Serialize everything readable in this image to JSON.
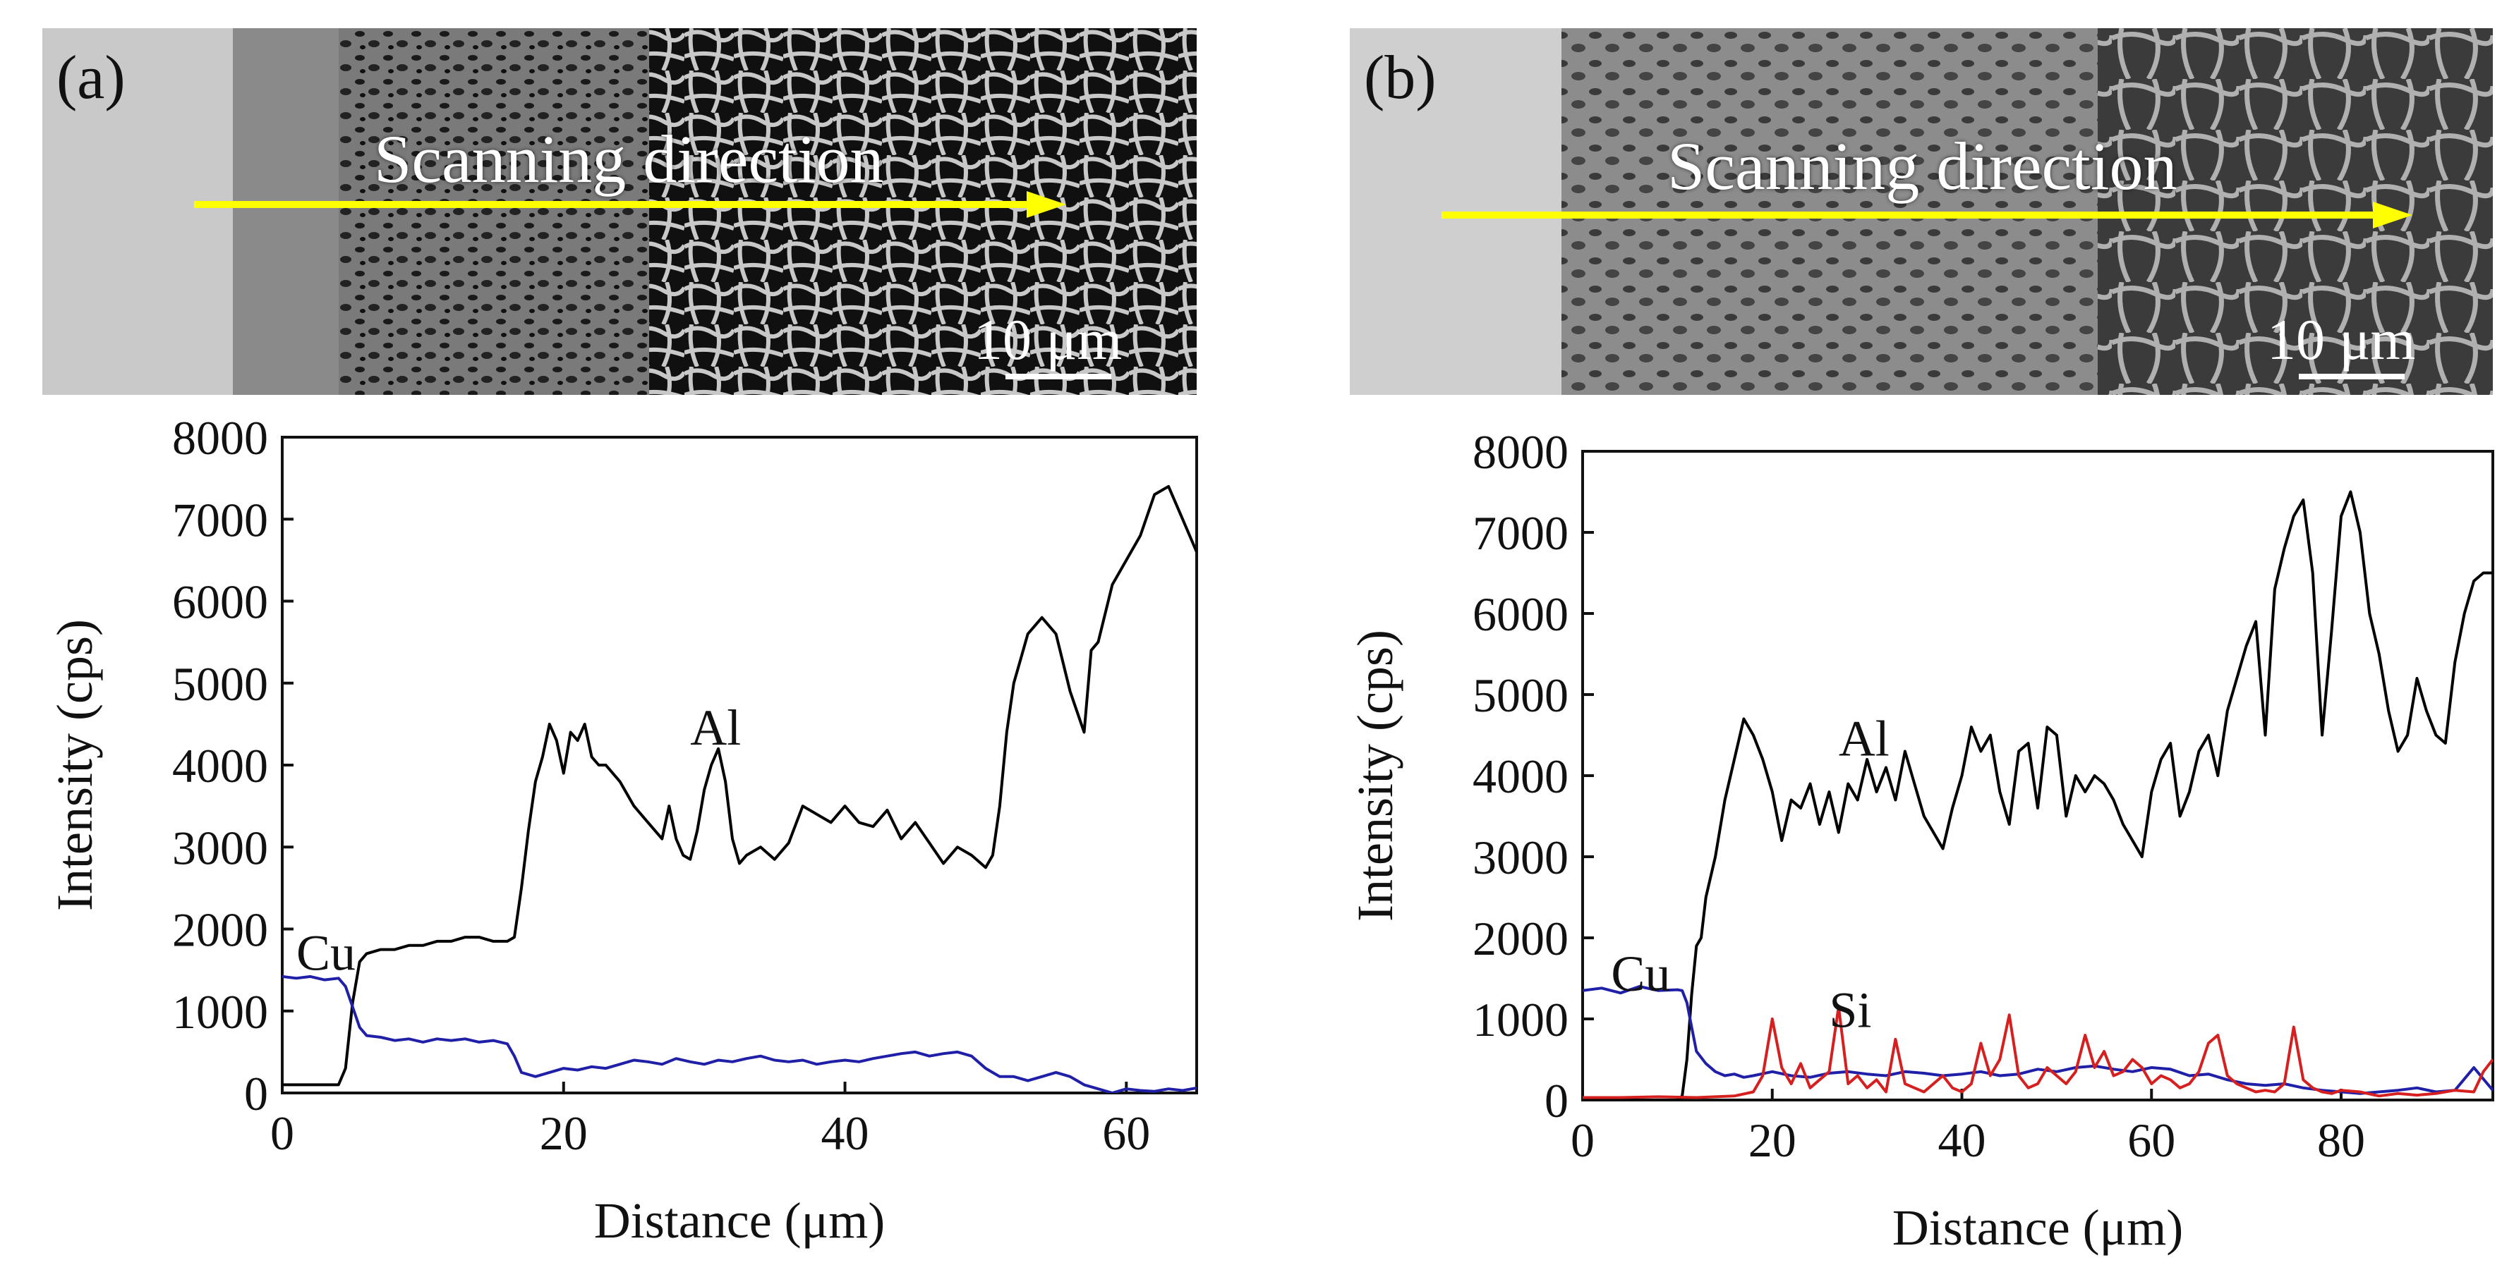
{
  "panels": [
    {
      "id": "a",
      "label": "(a)",
      "micrograph": {
        "caption": "Scanning direction",
        "scale_bar_label": "10 μm",
        "arrow_color": "#ffff00"
      },
      "chart_data": {
        "type": "line",
        "title": "",
        "xlabel": "Distance (μm)",
        "ylabel": "Intensity (cps)",
        "xlim": [
          0,
          65
        ],
        "ylim": [
          0,
          8000
        ],
        "xticks": [
          0,
          20,
          40,
          60
        ],
        "yticks": [
          0,
          1000,
          2000,
          3000,
          4000,
          5000,
          6000,
          7000,
          8000
        ],
        "series": [
          {
            "name": "Al",
            "color": "#000000",
            "x": [
              0,
              1,
              2,
              3,
              4,
              4.5,
              5,
              5.5,
              6,
              7,
              8,
              9,
              10,
              11,
              12,
              13,
              14,
              15,
              16,
              16.5,
              17,
              17.5,
              18,
              18.5,
              19,
              19.5,
              20,
              20.5,
              21,
              21.5,
              22,
              22.5,
              23,
              24,
              25,
              26,
              27,
              27.5,
              28,
              28.5,
              29,
              29.5,
              30,
              30.5,
              31,
              31.5,
              32,
              32.5,
              33,
              34,
              35,
              36,
              37,
              38,
              39,
              40,
              41,
              42,
              43,
              44,
              45,
              46,
              47,
              48,
              49,
              50,
              50.5,
              51,
              51.5,
              52,
              52.5,
              53,
              54,
              55,
              56,
              57,
              57.5,
              58,
              59,
              60,
              61,
              62,
              63,
              64,
              65
            ],
            "y": [
              100,
              100,
              100,
              100,
              100,
              300,
              1100,
              1600,
              1700,
              1750,
              1750,
              1800,
              1800,
              1850,
              1850,
              1900,
              1900,
              1850,
              1850,
              1900,
              2500,
              3200,
              3800,
              4100,
              4500,
              4300,
              3900,
              4400,
              4300,
              4500,
              4100,
              4000,
              4000,
              3800,
              3500,
              3300,
              3100,
              3500,
              3100,
              2900,
              2850,
              3200,
              3700,
              4000,
              4200,
              3800,
              3100,
              2800,
              2900,
              3000,
              2850,
              3050,
              3500,
              3400,
              3300,
              3500,
              3300,
              3250,
              3450,
              3100,
              3300,
              3050,
              2800,
              3000,
              2900,
              2750,
              2900,
              3500,
              4400,
              5000,
              5300,
              5600,
              5800,
              5600,
              4900,
              4400,
              5400,
              5500,
              6200,
              6500,
              6800,
              7300,
              7400,
              7000,
              6600
            ]
          },
          {
            "name": "Cu",
            "color": "#1f1fa8",
            "x": [
              0,
              1,
              2,
              3,
              4,
              4.5,
              5,
              5.5,
              6,
              7,
              8,
              9,
              10,
              11,
              12,
              13,
              14,
              15,
              16,
              16.5,
              17,
              18,
              19,
              20,
              21,
              22,
              23,
              24,
              25,
              26,
              27,
              28,
              29,
              30,
              31,
              32,
              33,
              34,
              35,
              36,
              37,
              38,
              39,
              40,
              41,
              42,
              43,
              44,
              45,
              46,
              47,
              48,
              49,
              50,
              51,
              52,
              53,
              54,
              55,
              56,
              57,
              58,
              59,
              60,
              61,
              62,
              63,
              64,
              65
            ],
            "y": [
              1420,
              1400,
              1420,
              1380,
              1400,
              1300,
              1050,
              800,
              700,
              680,
              640,
              660,
              620,
              660,
              640,
              660,
              620,
              640,
              600,
              450,
              250,
              200,
              250,
              300,
              280,
              320,
              300,
              350,
              400,
              380,
              350,
              420,
              380,
              350,
              400,
              380,
              420,
              450,
              400,
              380,
              400,
              350,
              380,
              400,
              380,
              420,
              450,
              480,
              500,
              450,
              480,
              500,
              450,
              300,
              200,
              200,
              150,
              200,
              250,
              200,
              100,
              50,
              0,
              50,
              30,
              20,
              50,
              30,
              60
            ]
          }
        ],
        "annotations": [
          "Al",
          "Cu"
        ]
      }
    },
    {
      "id": "b",
      "label": "(b)",
      "micrograph": {
        "caption": "Scanning direction",
        "scale_bar_label": "10 μm",
        "arrow_color": "#ffff00"
      },
      "chart_data": {
        "type": "line",
        "title": "",
        "xlabel": "Distance (μm)",
        "ylabel": "Intensity (cps)",
        "xlim": [
          0,
          96
        ],
        "ylim": [
          0,
          8000
        ],
        "xticks": [
          0,
          20,
          40,
          60,
          80
        ],
        "yticks": [
          0,
          1000,
          2000,
          3000,
          4000,
          5000,
          6000,
          7000,
          8000
        ],
        "series": [
          {
            "name": "Al",
            "color": "#000000",
            "x": [
              0,
              5,
              10,
              10.5,
              11,
              11.5,
              12,
              12.5,
              13,
              14,
              15,
              16,
              17,
              18,
              19,
              20,
              21,
              22,
              23,
              24,
              25,
              26,
              27,
              28,
              29,
              30,
              31,
              32,
              33,
              34,
              35,
              36,
              37,
              38,
              39,
              40,
              41,
              42,
              43,
              44,
              45,
              46,
              47,
              48,
              49,
              50,
              51,
              52,
              53,
              54,
              55,
              56,
              57,
              58,
              59,
              60,
              61,
              62,
              63,
              64,
              65,
              66,
              67,
              68,
              69,
              70,
              71,
              72,
              73,
              74,
              75,
              76,
              77,
              78,
              79,
              80,
              81,
              82,
              83,
              84,
              85,
              86,
              87,
              88,
              89,
              90,
              91,
              92,
              93,
              94,
              95,
              96
            ],
            "y": [
              0,
              0,
              0,
              50,
              500,
              1300,
              1900,
              2000,
              2500,
              3000,
              3700,
              4200,
              4700,
              4500,
              4200,
              3800,
              3200,
              3700,
              3600,
              3900,
              3400,
              3800,
              3300,
              3900,
              3700,
              4200,
              3800,
              4100,
              3700,
              4300,
              3900,
              3500,
              3300,
              3100,
              3600,
              4000,
              4600,
              4300,
              4500,
              3800,
              3400,
              4300,
              4400,
              3600,
              4600,
              4500,
              3500,
              4000,
              3800,
              4000,
              3900,
              3700,
              3400,
              3200,
              3000,
              3800,
              4200,
              4400,
              3500,
              3800,
              4300,
              4500,
              4000,
              4800,
              5200,
              5600,
              5900,
              4500,
              6300,
              6800,
              7200,
              7400,
              6500,
              4500,
              5800,
              7200,
              7500,
              7000,
              6000,
              5500,
              4800,
              4300,
              4500,
              5200,
              4800,
              4500,
              4400,
              5400,
              6000,
              6400,
              6500,
              6500
            ]
          },
          {
            "name": "Cu",
            "color": "#1f1fa8",
            "x": [
              0,
              2,
              4,
              6,
              8,
              10,
              10.5,
              11,
              11.5,
              12,
              13,
              14,
              15,
              16,
              17,
              18,
              20,
              22,
              24,
              26,
              28,
              30,
              32,
              34,
              36,
              38,
              40,
              42,
              44,
              46,
              48,
              50,
              52,
              54,
              56,
              58,
              60,
              62,
              64,
              66,
              68,
              70,
              72,
              74,
              76,
              78,
              80,
              82,
              84,
              86,
              88,
              90,
              92,
              94,
              96
            ],
            "y": [
              1350,
              1380,
              1320,
              1400,
              1350,
              1360,
              1350,
              1200,
              900,
              600,
              450,
              350,
              300,
              320,
              280,
              300,
              350,
              300,
              280,
              330,
              350,
              320,
              300,
              350,
              330,
              300,
              320,
              350,
              300,
              320,
              380,
              350,
              400,
              420,
              380,
              350,
              400,
              380,
              300,
              320,
              250,
              200,
              180,
              200,
              150,
              120,
              100,
              80,
              100,
              120,
              150,
              100,
              120,
              400,
              120
            ]
          },
          {
            "name": "Si",
            "color": "#d62020",
            "x": [
              0,
              4,
              8,
              12,
              16,
              18,
              19,
              20,
              21,
              22,
              23,
              24,
              25,
              26,
              27,
              28,
              29,
              30,
              31,
              32,
              33,
              34,
              35,
              36,
              37,
              38,
              39,
              40,
              41,
              42,
              43,
              44,
              45,
              46,
              47,
              48,
              49,
              50,
              51,
              52,
              53,
              54,
              55,
              56,
              57,
              58,
              59,
              60,
              61,
              62,
              63,
              64,
              65,
              66,
              67,
              68,
              69,
              70,
              71,
              72,
              73,
              74,
              75,
              76,
              77,
              78,
              79,
              80,
              82,
              84,
              86,
              88,
              90,
              92,
              94,
              95,
              96
            ],
            "y": [
              30,
              30,
              40,
              30,
              50,
              100,
              300,
              1000,
              400,
              200,
              450,
              150,
              250,
              350,
              1150,
              200,
              300,
              150,
              250,
              100,
              750,
              200,
              150,
              100,
              200,
              300,
              150,
              100,
              200,
              700,
              300,
              500,
              1050,
              300,
              150,
              200,
              400,
              300,
              200,
              350,
              800,
              400,
              600,
              300,
              350,
              500,
              400,
              200,
              300,
              250,
              150,
              200,
              350,
              700,
              800,
              300,
              200,
              150,
              100,
              120,
              100,
              200,
              900,
              250,
              150,
              100,
              80,
              120,
              100,
              50,
              80,
              60,
              80,
              120,
              100,
              350,
              500
            ]
          }
        ],
        "annotations": [
          "Al",
          "Cu",
          "Si"
        ]
      }
    }
  ]
}
